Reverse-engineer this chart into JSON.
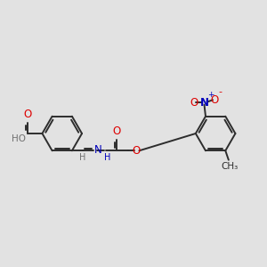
{
  "bg_color": "#e2e2e2",
  "bond_color": "#2d2d2d",
  "red_color": "#dd0000",
  "blue_color": "#0000bb",
  "gray_color": "#707070",
  "lw": 1.4,
  "figsize": [
    3.0,
    3.0
  ],
  "dpi": 100,
  "xlim": [
    0,
    10
  ],
  "ylim": [
    2,
    8
  ]
}
